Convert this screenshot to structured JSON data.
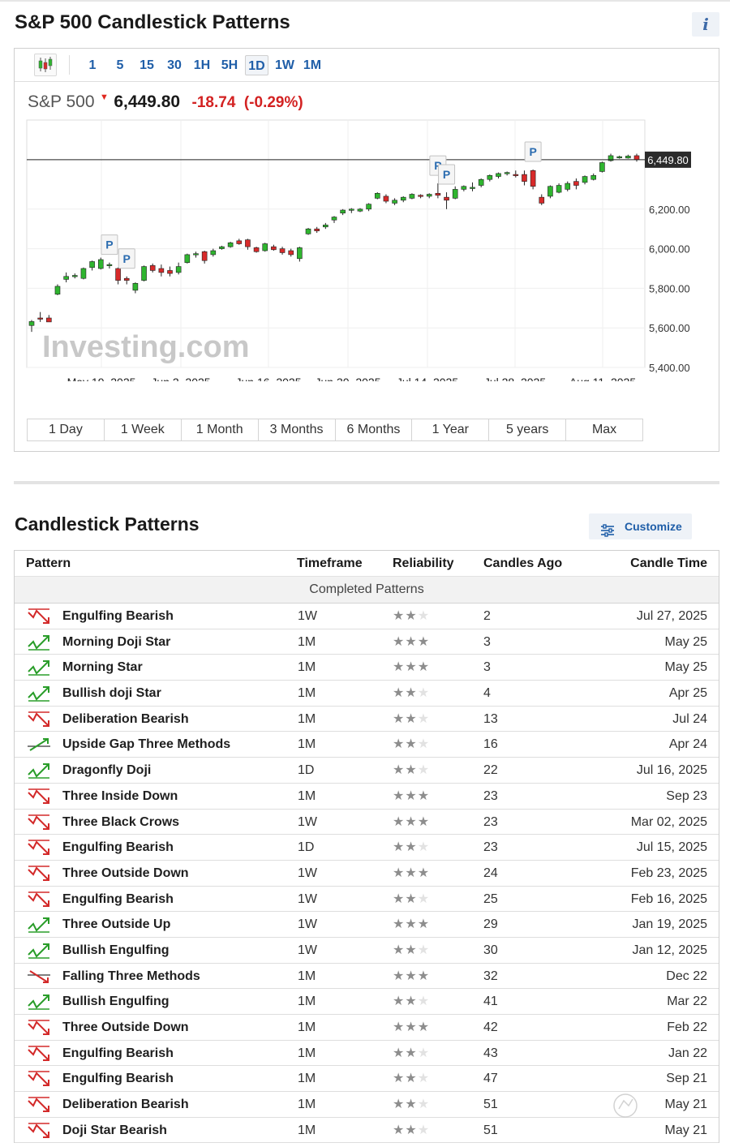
{
  "page": {
    "title": "S&P 500 Candlestick Patterns",
    "info_icon": "i"
  },
  "toolbar": {
    "chart_type_icon": "candlestick-icon",
    "timeframes": [
      "1",
      "5",
      "15",
      "30",
      "1H",
      "5H",
      "1D",
      "1W",
      "1M"
    ],
    "active_timeframe": "1D"
  },
  "quote": {
    "name": "S&P 500",
    "price": "6,449.80",
    "change": "-18.74",
    "change_pct": "(-0.29%)",
    "direction_icon": "down-arrow-icon",
    "down_color": "#d32222"
  },
  "ranges": [
    "1 Day",
    "1 Week",
    "1 Month",
    "3 Months",
    "6 Months",
    "1 Year",
    "5 years",
    "Max"
  ],
  "chart_data": {
    "type": "candlestick",
    "watermark": "Investing.com",
    "x_tick_labels": [
      "May 19, 2025",
      "Jun 2, 2025",
      "Jun 16, 2025",
      "Jun 30, 2025",
      "Jul 14, 2025",
      "Jul 28, 2025",
      "Aug 11, 2025"
    ],
    "y_tick_labels": [
      "6,200.00",
      "6,000.00",
      "5,800.00",
      "5,600.00",
      "5,400.00"
    ],
    "ylim": [
      5400,
      6650
    ],
    "last_price_label": "6,449.80",
    "last_price": 6449.8,
    "pattern_marker_label": "P",
    "up_color": "#2fb52f",
    "down_color": "#d82a2a",
    "candles": [
      [
        5612,
        5640,
        5580,
        5632
      ],
      [
        5650,
        5680,
        5630,
        5645
      ],
      [
        5650,
        5665,
        5635,
        5630
      ],
      [
        5770,
        5820,
        5765,
        5810
      ],
      [
        5845,
        5880,
        5830,
        5860
      ],
      [
        5860,
        5875,
        5850,
        5865
      ],
      [
        5850,
        5905,
        5845,
        5900
      ],
      [
        5905,
        5940,
        5890,
        5935
      ],
      [
        5900,
        5955,
        5895,
        5945
      ],
      [
        5915,
        5930,
        5900,
        5920
      ],
      [
        5900,
        5905,
        5820,
        5840
      ],
      [
        5850,
        5860,
        5820,
        5840
      ],
      [
        5790,
        5830,
        5775,
        5825
      ],
      [
        5840,
        5915,
        5835,
        5910
      ],
      [
        5915,
        5925,
        5880,
        5890
      ],
      [
        5900,
        5920,
        5860,
        5880
      ],
      [
        5890,
        5910,
        5860,
        5875
      ],
      [
        5880,
        5930,
        5870,
        5910
      ],
      [
        5930,
        5975,
        5925,
        5970
      ],
      [
        5970,
        5985,
        5955,
        5975
      ],
      [
        5985,
        5990,
        5925,
        5940
      ],
      [
        5970,
        6000,
        5960,
        5990
      ],
      [
        6000,
        6015,
        5995,
        6010
      ],
      [
        6010,
        6035,
        6005,
        6030
      ],
      [
        6040,
        6050,
        6020,
        6025
      ],
      [
        6045,
        6050,
        5995,
        6010
      ],
      [
        6005,
        6010,
        5980,
        5985
      ],
      [
        5990,
        6030,
        5985,
        6025
      ],
      [
        6010,
        6020,
        5990,
        5995
      ],
      [
        6000,
        6010,
        5970,
        5980
      ],
      [
        5990,
        6000,
        5960,
        5970
      ],
      [
        5950,
        6010,
        5935,
        6005
      ],
      [
        6075,
        6105,
        6070,
        6100
      ],
      [
        6100,
        6110,
        6080,
        6090
      ],
      [
        6110,
        6130,
        6100,
        6120
      ],
      [
        6145,
        6165,
        6130,
        6160
      ],
      [
        6180,
        6200,
        6170,
        6195
      ],
      [
        6195,
        6205,
        6180,
        6200
      ],
      [
        6190,
        6205,
        6185,
        6200
      ],
      [
        6200,
        6230,
        6190,
        6225
      ],
      [
        6255,
        6285,
        6250,
        6280
      ],
      [
        6265,
        6275,
        6230,
        6240
      ],
      [
        6230,
        6255,
        6220,
        6245
      ],
      [
        6245,
        6265,
        6235,
        6260
      ],
      [
        6255,
        6280,
        6250,
        6275
      ],
      [
        6270,
        6275,
        6255,
        6265
      ],
      [
        6265,
        6280,
        6255,
        6275
      ],
      [
        6280,
        6330,
        6255,
        6270
      ],
      [
        6260,
        6285,
        6200,
        6245
      ],
      [
        6255,
        6315,
        6250,
        6300
      ],
      [
        6300,
        6320,
        6290,
        6315
      ],
      [
        6310,
        6335,
        6290,
        6310
      ],
      [
        6320,
        6355,
        6310,
        6350
      ],
      [
        6350,
        6375,
        6340,
        6370
      ],
      [
        6365,
        6385,
        6355,
        6380
      ],
      [
        6380,
        6390,
        6370,
        6385
      ],
      [
        6375,
        6395,
        6360,
        6370
      ],
      [
        6375,
        6395,
        6320,
        6340
      ],
      [
        6395,
        6400,
        6300,
        6315
      ],
      [
        6260,
        6275,
        6220,
        6230
      ],
      [
        6265,
        6320,
        6255,
        6315
      ],
      [
        6285,
        6330,
        6280,
        6320
      ],
      [
        6300,
        6340,
        6290,
        6330
      ],
      [
        6340,
        6355,
        6300,
        6320
      ],
      [
        6335,
        6370,
        6325,
        6365
      ],
      [
        6350,
        6380,
        6345,
        6370
      ],
      [
        6390,
        6440,
        6385,
        6435
      ],
      [
        6445,
        6480,
        6440,
        6470
      ],
      [
        6460,
        6470,
        6455,
        6465
      ],
      [
        6458,
        6475,
        6455,
        6468
      ],
      [
        6470,
        6480,
        6440,
        6450
      ]
    ],
    "markers": [
      {
        "label": "P",
        "candle": 9
      },
      {
        "label": "P",
        "candle": 11
      },
      {
        "label": "P",
        "candle": 47
      },
      {
        "label": "P",
        "candle": 48
      },
      {
        "label": "P",
        "candle": 58
      }
    ]
  },
  "patterns_section": {
    "title": "Candlestick Patterns",
    "customize": "Customize",
    "customize_icon": "sliders-icon",
    "headers": {
      "pattern": "Pattern",
      "timeframe": "Timeframe",
      "reliability": "Reliability",
      "candles_ago": "Candles Ago",
      "candle_time": "Candle Time"
    },
    "group_label": "Completed Patterns",
    "rows": [
      {
        "icon": "bearish-reversal-icon",
        "name": "Engulfing Bearish",
        "timeframe": "1W",
        "reliability": 2,
        "candles_ago": "2",
        "candle_time": "Jul 27, 2025"
      },
      {
        "icon": "bullish-reversal-icon",
        "name": "Morning Doji Star",
        "timeframe": "1M",
        "reliability": 3,
        "candles_ago": "3",
        "candle_time": "May 25"
      },
      {
        "icon": "bullish-reversal-icon",
        "name": "Morning Star",
        "timeframe": "1M",
        "reliability": 3,
        "candles_ago": "3",
        "candle_time": "May 25"
      },
      {
        "icon": "bullish-reversal-icon",
        "name": "Bullish doji Star",
        "timeframe": "1M",
        "reliability": 2,
        "candles_ago": "4",
        "candle_time": "Apr 25"
      },
      {
        "icon": "bearish-reversal-icon",
        "name": "Deliberation Bearish",
        "timeframe": "1M",
        "reliability": 2,
        "candles_ago": "13",
        "candle_time": "Jul 24"
      },
      {
        "icon": "bullish-continuation-icon",
        "name": "Upside Gap Three Methods",
        "timeframe": "1M",
        "reliability": 2,
        "candles_ago": "16",
        "candle_time": "Apr 24"
      },
      {
        "icon": "bullish-reversal-icon",
        "name": "Dragonfly Doji",
        "timeframe": "1D",
        "reliability": 2,
        "candles_ago": "22",
        "candle_time": "Jul 16, 2025"
      },
      {
        "icon": "bearish-reversal-icon",
        "name": "Three Inside Down",
        "timeframe": "1M",
        "reliability": 3,
        "candles_ago": "23",
        "candle_time": "Sep 23"
      },
      {
        "icon": "bearish-reversal-icon",
        "name": "Three Black Crows",
        "timeframe": "1W",
        "reliability": 3,
        "candles_ago": "23",
        "candle_time": "Mar 02, 2025"
      },
      {
        "icon": "bearish-reversal-icon",
        "name": "Engulfing Bearish",
        "timeframe": "1D",
        "reliability": 2,
        "candles_ago": "23",
        "candle_time": "Jul 15, 2025"
      },
      {
        "icon": "bearish-reversal-icon",
        "name": "Three Outside Down",
        "timeframe": "1W",
        "reliability": 3,
        "candles_ago": "24",
        "candle_time": "Feb 23, 2025"
      },
      {
        "icon": "bearish-reversal-icon",
        "name": "Engulfing Bearish",
        "timeframe": "1W",
        "reliability": 2,
        "candles_ago": "25",
        "candle_time": "Feb 16, 2025"
      },
      {
        "icon": "bullish-reversal-icon",
        "name": "Three Outside Up",
        "timeframe": "1W",
        "reliability": 3,
        "candles_ago": "29",
        "candle_time": "Jan 19, 2025"
      },
      {
        "icon": "bullish-reversal-icon",
        "name": "Bullish Engulfing",
        "timeframe": "1W",
        "reliability": 2,
        "candles_ago": "30",
        "candle_time": "Jan 12, 2025"
      },
      {
        "icon": "bearish-continuation-icon",
        "name": "Falling Three Methods",
        "timeframe": "1M",
        "reliability": 3,
        "candles_ago": "32",
        "candle_time": "Dec 22"
      },
      {
        "icon": "bullish-reversal-icon",
        "name": "Bullish Engulfing",
        "timeframe": "1M",
        "reliability": 2,
        "candles_ago": "41",
        "candle_time": "Mar 22"
      },
      {
        "icon": "bearish-reversal-icon",
        "name": "Three Outside Down",
        "timeframe": "1M",
        "reliability": 3,
        "candles_ago": "42",
        "candle_time": "Feb 22"
      },
      {
        "icon": "bearish-reversal-icon",
        "name": "Engulfing Bearish",
        "timeframe": "1M",
        "reliability": 2,
        "candles_ago": "43",
        "candle_time": "Jan 22"
      },
      {
        "icon": "bearish-reversal-icon",
        "name": "Engulfing Bearish",
        "timeframe": "1M",
        "reliability": 2,
        "candles_ago": "47",
        "candle_time": "Sep 21"
      },
      {
        "icon": "bearish-reversal-icon",
        "name": "Deliberation Bearish",
        "timeframe": "1M",
        "reliability": 2,
        "candles_ago": "51",
        "candle_time": "May 21"
      },
      {
        "icon": "bearish-reversal-icon",
        "name": "Doji Star Bearish",
        "timeframe": "1M",
        "reliability": 2,
        "candles_ago": "51",
        "candle_time": "May 21"
      }
    ]
  }
}
